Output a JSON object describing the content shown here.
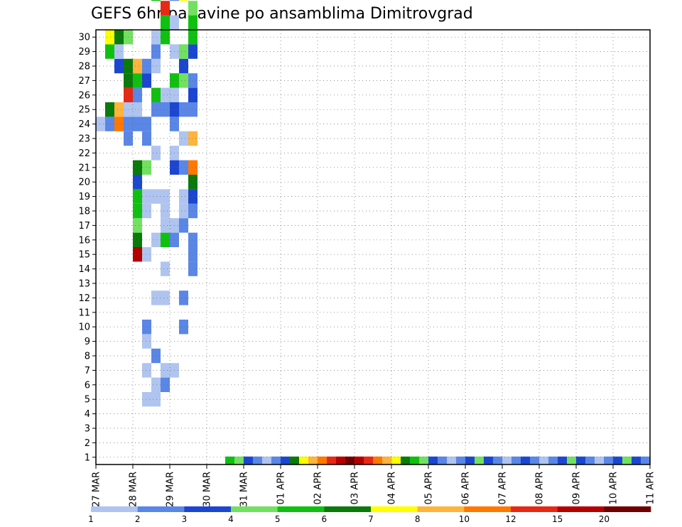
{
  "chart_data": {
    "type": "heatmap",
    "title": "GEFS 6hr padavine po ansamblima Dimitrovgrad",
    "x_ticks": [
      "27 MAR",
      "28 MAR",
      "29 MAR",
      "30 MAR",
      "31 MAR",
      "01 APR",
      "02 APR",
      "03 APR",
      "04 APR",
      "05 APR",
      "06 APR",
      "07 APR",
      "08 APR",
      "09 APR",
      "10 APR",
      "11 APR"
    ],
    "x_range_steps": [
      0,
      60
    ],
    "y_range": [
      0,
      30
    ],
    "y_ticks": [
      1,
      2,
      3,
      4,
      5,
      6,
      7,
      8,
      9,
      10,
      11,
      12,
      13,
      14,
      15,
      16,
      17,
      18,
      19,
      20,
      21,
      22,
      23,
      24,
      25,
      26,
      27,
      28,
      29,
      30
    ],
    "grid": true,
    "colorbar": {
      "labels": [
        "1",
        "2",
        "3",
        "4",
        "5",
        "6",
        "7",
        "8",
        "10",
        "12",
        "15",
        "20"
      ],
      "colors": [
        "#b0c4f0",
        "#5a86e6",
        "#1c46d0",
        "#72e060",
        "#10c010",
        "#0a7a0a",
        "#ffff00",
        "#ffb43c",
        "#ff7800",
        "#e62814",
        "#b40000",
        "#6e0000"
      ]
    },
    "cells": [
      [
        23,
        0,
        0
      ],
      [
        23,
        1,
        1
      ],
      [
        24,
        1,
        5
      ],
      [
        28,
        1,
        4
      ],
      [
        29,
        1,
        6
      ],
      [
        23,
        2,
        8
      ],
      [
        24,
        2,
        7
      ],
      [
        27,
        2,
        2
      ],
      [
        28,
        2,
        0
      ],
      [
        29,
        2,
        5
      ],
      [
        22,
        3,
        1
      ],
      [
        23,
        3,
        1
      ],
      [
        24,
        3,
        0
      ],
      [
        25,
        3,
        9
      ],
      [
        26,
        3,
        5
      ],
      [
        27,
        3,
        5
      ],
      [
        29,
        3,
        3
      ],
      [
        14,
        4,
        10
      ],
      [
        15,
        4,
        5
      ],
      [
        16,
        4,
        3
      ],
      [
        17,
        4,
        4
      ],
      [
        18,
        4,
        4
      ],
      [
        19,
        4,
        2
      ],
      [
        20,
        4,
        5
      ],
      [
        23,
        4,
        1
      ],
      [
        24,
        4,
        0
      ],
      [
        25,
        4,
        1
      ],
      [
        26,
        4,
        4
      ],
      [
        27,
        4,
        7
      ],
      [
        4,
        5,
        0
      ],
      [
        6,
        5,
        0
      ],
      [
        8,
        5,
        0
      ],
      [
        9,
        5,
        1
      ],
      [
        14,
        5,
        0
      ],
      [
        17,
        5,
        0
      ],
      [
        18,
        5,
        0
      ],
      [
        20,
        5,
        3
      ],
      [
        22,
        5,
        1
      ],
      [
        23,
        5,
        1
      ],
      [
        26,
        5,
        2
      ],
      [
        27,
        5,
        1
      ],
      [
        4,
        6,
        0
      ],
      [
        5,
        6,
        0
      ],
      [
        7,
        6,
        1
      ],
      [
        11,
        6,
        0
      ],
      [
        15,
        6,
        0
      ],
      [
        18,
        6,
        0
      ],
      [
        21,
        6,
        0
      ],
      [
        24,
        6,
        1
      ],
      [
        25,
        6,
        4
      ],
      [
        27,
        6,
        0
      ],
      [
        28,
        6,
        1
      ],
      [
        29,
        6,
        0
      ],
      [
        32,
        6,
        4
      ],
      [
        33,
        6,
        5
      ],
      [
        36,
        6,
        7
      ],
      [
        37,
        6,
        0
      ],
      [
        40,
        6,
        3
      ],
      [
        41,
        6,
        2
      ],
      [
        43,
        6,
        5
      ],
      [
        44,
        6,
        1
      ],
      [
        45,
        6,
        2
      ],
      [
        46,
        6,
        5
      ],
      [
        49,
        6,
        0
      ],
      [
        5,
        7,
        1
      ],
      [
        6,
        7,
        0
      ],
      [
        11,
        7,
        0
      ],
      [
        13,
        7,
        0
      ],
      [
        15,
        7,
        4
      ],
      [
        16,
        7,
        0
      ],
      [
        17,
        7,
        0
      ],
      [
        18,
        7,
        0
      ],
      [
        24,
        7,
        1
      ],
      [
        25,
        7,
        0
      ],
      [
        29,
        7,
        4
      ],
      [
        30,
        7,
        4
      ],
      [
        31,
        7,
        9
      ],
      [
        37,
        7,
        3
      ],
      [
        40,
        7,
        7
      ],
      [
        41,
        7,
        11
      ],
      [
        43,
        7,
        0
      ],
      [
        44,
        7,
        0
      ],
      [
        45,
        7,
        1
      ],
      [
        46,
        7,
        0
      ],
      [
        47,
        7,
        0
      ],
      [
        48,
        7,
        0
      ],
      [
        49,
        7,
        1
      ],
      [
        6,
        8,
        0
      ],
      [
        15,
        8,
        1
      ],
      [
        16,
        8,
        0
      ],
      [
        20,
        8,
        2
      ],
      [
        21,
        8,
        0
      ],
      [
        23,
        8,
        1
      ],
      [
        24,
        8,
        2
      ],
      [
        25,
        8,
        0
      ],
      [
        26,
        8,
        4
      ],
      [
        28,
        8,
        0
      ],
      [
        30,
        8,
        0
      ],
      [
        32,
        8,
        1
      ],
      [
        33,
        8,
        0
      ],
      [
        35,
        8,
        2
      ],
      [
        36,
        8,
        6
      ],
      [
        37,
        8,
        0
      ],
      [
        44,
        8,
        4
      ],
      [
        45,
        8,
        2
      ],
      [
        47,
        8,
        1
      ],
      [
        48,
        8,
        5
      ],
      [
        49,
        8,
        3
      ],
      [
        9,
        9,
        1
      ],
      [
        11,
        9,
        1
      ],
      [
        16,
        9,
        1
      ],
      [
        17,
        9,
        0
      ],
      [
        18,
        9,
        0
      ],
      [
        20,
        9,
        1
      ],
      [
        22,
        9,
        0
      ],
      [
        24,
        9,
        1
      ],
      [
        26,
        9,
        3
      ],
      [
        27,
        9,
        2
      ],
      [
        28,
        9,
        3
      ],
      [
        32,
        9,
        6
      ],
      [
        33,
        9,
        5
      ],
      [
        44,
        9,
        0
      ],
      [
        45,
        9,
        1
      ],
      [
        47,
        9,
        0
      ],
      [
        49,
        9,
        0
      ],
      [
        13,
        10,
        1
      ],
      [
        14,
        10,
        1
      ],
      [
        15,
        10,
        1
      ],
      [
        17,
        10,
        1
      ],
      [
        18,
        10,
        2
      ],
      [
        19,
        10,
        5
      ],
      [
        20,
        10,
        8
      ],
      [
        22,
        10,
        7
      ],
      [
        24,
        10,
        1
      ],
      [
        25,
        10,
        2
      ],
      [
        26,
        10,
        1
      ],
      [
        28,
        10,
        2
      ],
      [
        29,
        10,
        4
      ],
      [
        30,
        10,
        4
      ],
      [
        31,
        10,
        3
      ],
      [
        35,
        10,
        3
      ],
      [
        36,
        10,
        1
      ],
      [
        37,
        10,
        1
      ],
      [
        38,
        10,
        2
      ],
      [
        39,
        10,
        1
      ],
      [
        40,
        10,
        3
      ],
      [
        41,
        10,
        4
      ],
      [
        45,
        10,
        4
      ],
      [
        46,
        10,
        2
      ],
      [
        47,
        10,
        0
      ],
      [
        48,
        10,
        1
      ],
      [
        49,
        10,
        0
      ],
      [
        51,
        10,
        2
      ],
      [
        52,
        10,
        0
      ],
      [
        53,
        10,
        1
      ],
      [
        54,
        10,
        4
      ],
      [
        55,
        10,
        2
      ],
      [
        56,
        10,
        5
      ],
      [
        57,
        10,
        2
      ],
      [
        58,
        10,
        1
      ],
      [
        59,
        10,
        0
      ],
      [
        60,
        10,
        1
      ]
    ],
    "segments": [
      [
        14,
        0,
        4
      ],
      [
        15,
        0,
        3
      ],
      [
        16,
        0,
        2
      ],
      [
        17,
        0,
        1
      ],
      [
        18,
        0,
        0
      ],
      [
        19,
        0,
        1
      ],
      [
        20,
        0,
        2
      ],
      [
        21,
        0,
        5
      ],
      [
        22,
        0,
        6
      ],
      [
        23,
        0,
        7
      ],
      [
        24,
        0,
        8
      ],
      [
        25,
        0,
        9
      ],
      [
        26,
        0,
        10
      ],
      [
        27,
        0,
        11
      ],
      [
        28,
        0,
        10
      ],
      [
        29,
        0,
        9
      ],
      [
        30,
        0,
        8
      ],
      [
        31,
        0,
        7
      ],
      [
        32,
        0,
        6
      ],
      [
        33,
        0,
        5
      ],
      [
        34,
        0,
        4
      ],
      [
        35,
        0,
        3
      ],
      [
        36,
        0,
        2
      ],
      [
        37,
        0,
        1
      ],
      [
        38,
        0,
        0
      ],
      [
        39,
        0,
        1
      ],
      [
        40,
        0,
        2
      ],
      [
        41,
        0,
        3
      ],
      [
        42,
        0,
        2
      ],
      [
        43,
        0,
        1
      ],
      [
        44,
        0,
        0
      ],
      [
        45,
        0,
        1
      ],
      [
        46,
        0,
        2
      ],
      [
        47,
        0,
        1
      ],
      [
        48,
        0,
        0
      ],
      [
        49,
        0,
        1
      ],
      [
        50,
        0,
        2
      ],
      [
        51,
        0,
        3
      ],
      [
        52,
        0,
        2
      ],
      [
        53,
        0,
        1
      ],
      [
        54,
        0,
        0
      ],
      [
        55,
        0,
        1
      ],
      [
        56,
        0,
        2
      ],
      [
        57,
        0,
        3
      ],
      [
        58,
        0,
        2
      ],
      [
        59,
        0,
        1
      ]
    ]
  }
}
